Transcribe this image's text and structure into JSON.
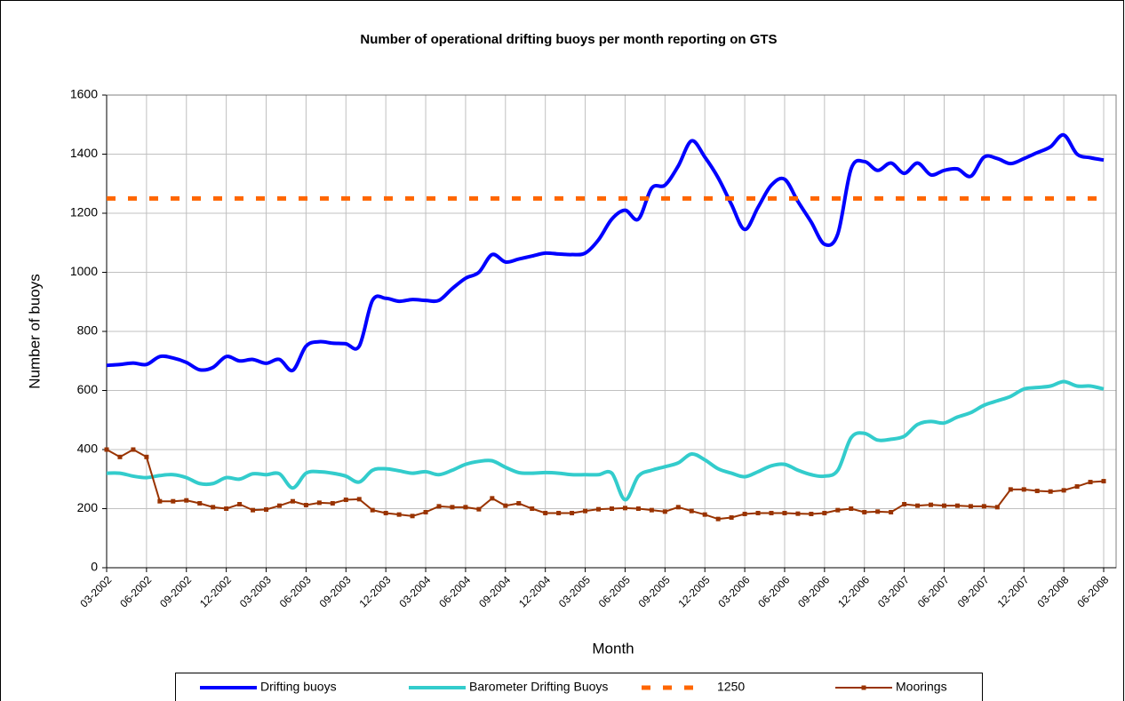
{
  "chart_data": {
    "type": "line",
    "title": "Number of operational drifting buoys per month reporting on GTS",
    "x_label": "Month",
    "y_label": "Number of buoys",
    "categories": [
      "03-2002",
      null,
      null,
      "06-2002",
      null,
      null,
      "09-2002",
      null,
      null,
      "12-2002",
      null,
      null,
      "03-2003",
      null,
      null,
      "06-2003",
      null,
      null,
      "09-2003",
      null,
      null,
      "12-2003",
      null,
      null,
      "03-2004",
      null,
      null,
      "06-2004",
      null,
      null,
      "09-2004",
      null,
      null,
      "12-2004",
      null,
      null,
      "03-2005",
      null,
      null,
      "06-2005",
      null,
      null,
      "09-2005",
      null,
      null,
      "12-2005",
      null,
      null,
      "03-2006",
      null,
      null,
      "06-2006",
      null,
      null,
      "09-2006",
      null,
      null,
      "12-2006",
      null,
      null,
      "03-2007",
      null,
      null,
      "06-2007",
      null,
      null,
      "09-2007",
      null,
      null,
      "12-2007",
      null,
      null,
      "03-2008",
      null,
      null,
      "06-2008"
    ],
    "series": [
      {
        "name": "Drifting buoys",
        "color": "#0000ff",
        "smooth": true,
        "values": [
          685,
          688,
          693,
          688,
          715,
          710,
          695,
          670,
          678,
          715,
          700,
          705,
          692,
          705,
          668,
          750,
          765,
          760,
          758,
          750,
          905,
          912,
          902,
          908,
          905,
          905,
          945,
          980,
          1000,
          1060,
          1035,
          1045,
          1055,
          1065,
          1062,
          1060,
          1065,
          1110,
          1180,
          1210,
          1180,
          1285,
          1295,
          1360,
          1445,
          1390,
          1320,
          1230,
          1145,
          1220,
          1295,
          1315,
          1240,
          1170,
          1095,
          1130,
          1350,
          1375,
          1345,
          1370,
          1335,
          1370,
          1330,
          1345,
          1350,
          1325,
          1390,
          1385,
          1368,
          1385,
          1405,
          1425,
          1465,
          1400,
          1388,
          1380
        ]
      },
      {
        "name": "Barometer Drifting Buoys",
        "color": "#33cccc",
        "smooth": true,
        "values": [
          320,
          320,
          310,
          305,
          312,
          315,
          305,
          285,
          285,
          305,
          300,
          318,
          315,
          318,
          270,
          320,
          325,
          320,
          310,
          290,
          330,
          335,
          328,
          320,
          325,
          315,
          330,
          350,
          360,
          362,
          340,
          322,
          320,
          322,
          320,
          315,
          315,
          315,
          320,
          230,
          310,
          330,
          342,
          355,
          385,
          365,
          335,
          320,
          308,
          325,
          345,
          350,
          330,
          315,
          310,
          330,
          440,
          455,
          432,
          435,
          445,
          485,
          495,
          490,
          510,
          525,
          550,
          565,
          580,
          605,
          610,
          615,
          630,
          615,
          615,
          605
        ]
      },
      {
        "name": "1250",
        "color": "#ff6600",
        "dash": true,
        "values": [
          1250,
          1250,
          1250,
          1250,
          1250,
          1250,
          1250,
          1250,
          1250,
          1250,
          1250,
          1250,
          1250,
          1250,
          1250,
          1250,
          1250,
          1250,
          1250,
          1250,
          1250,
          1250,
          1250,
          1250,
          1250,
          1250,
          1250,
          1250,
          1250,
          1250,
          1250,
          1250,
          1250,
          1250,
          1250,
          1250,
          1250,
          1250,
          1250,
          1250,
          1250,
          1250,
          1250,
          1250,
          1250,
          1250,
          1250,
          1250,
          1250,
          1250,
          1250,
          1250,
          1250,
          1250,
          1250,
          1250,
          1250,
          1250,
          1250,
          1250,
          1250,
          1250,
          1250,
          1250,
          1250,
          1250,
          1250,
          1250,
          1250,
          1250,
          1250,
          1250,
          1250,
          1250,
          1250,
          1250
        ]
      },
      {
        "name": "Moorings",
        "color": "#993300",
        "marker": "square",
        "values": [
          400,
          375,
          400,
          375,
          225,
          225,
          228,
          218,
          205,
          200,
          215,
          195,
          197,
          210,
          225,
          212,
          220,
          218,
          230,
          232,
          195,
          185,
          180,
          175,
          188,
          208,
          205,
          205,
          198,
          235,
          210,
          218,
          200,
          185,
          185,
          185,
          192,
          198,
          200,
          202,
          200,
          195,
          190,
          205,
          192,
          180,
          165,
          170,
          182,
          185,
          185,
          185,
          183,
          182,
          185,
          195,
          200,
          188,
          190,
          188,
          215,
          210,
          213,
          210,
          210,
          208,
          208,
          205,
          265,
          265,
          260,
          258,
          262,
          275,
          290,
          293
        ]
      }
    ],
    "ylim": [
      0,
      1600
    ],
    "yticks": [
      0,
      200,
      400,
      600,
      800,
      1000,
      1200,
      1400,
      1600
    ],
    "grid": true,
    "legend": "bottom"
  }
}
